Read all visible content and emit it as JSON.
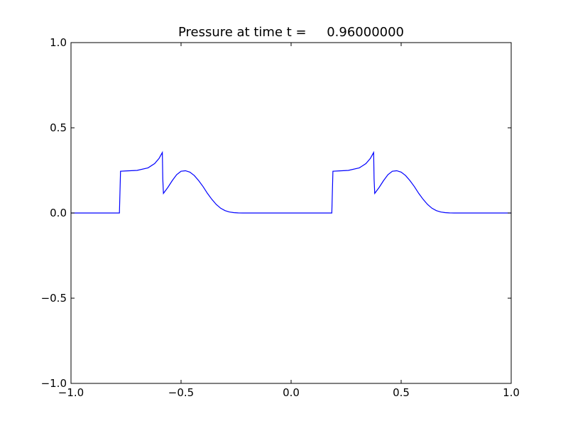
{
  "chart_data": {
    "type": "line",
    "title": "Pressure at time t =     0.96000000",
    "xlabel": "",
    "ylabel": "",
    "xlim": [
      -1.0,
      1.0
    ],
    "ylim": [
      -1.0,
      1.0
    ],
    "grid": false,
    "x_ticks": [
      "−1.0",
      "−0.5",
      "0.0",
      "0.5",
      "1.0"
    ],
    "y_ticks": [
      "−1.0",
      "−0.5",
      "0.0",
      "0.5",
      "1.0"
    ],
    "line_color": "#0000ff",
    "series": [
      {
        "x": [
          -1.0,
          -0.78,
          -0.775,
          -0.75,
          -0.7,
          -0.65,
          -0.62,
          -0.6,
          -0.585,
          -0.583,
          -0.58,
          -0.56,
          -0.54,
          -0.52,
          -0.5,
          -0.48,
          -0.46,
          -0.44,
          -0.42,
          -0.4,
          -0.38,
          -0.36,
          -0.34,
          -0.32,
          -0.3,
          -0.28,
          -0.26,
          -0.24,
          -0.22,
          -0.2,
          0.185,
          0.19,
          0.215,
          0.26,
          0.31,
          0.34,
          0.36,
          0.375,
          0.377,
          0.38,
          0.4,
          0.42,
          0.44,
          0.46,
          0.48,
          0.5,
          0.52,
          0.54,
          0.56,
          0.58,
          0.6,
          0.62,
          0.64,
          0.66,
          0.68,
          0.7,
          0.72,
          0.74,
          0.76,
          1.0
        ],
        "y": [
          0.0,
          0.0,
          0.245,
          0.247,
          0.25,
          0.265,
          0.29,
          0.32,
          0.355,
          0.2,
          0.115,
          0.15,
          0.19,
          0.225,
          0.245,
          0.248,
          0.24,
          0.22,
          0.19,
          0.155,
          0.115,
          0.08,
          0.05,
          0.028,
          0.014,
          0.006,
          0.002,
          0.0005,
          0.0,
          0.0,
          0.0,
          0.245,
          0.247,
          0.25,
          0.265,
          0.29,
          0.32,
          0.355,
          0.2,
          0.115,
          0.15,
          0.19,
          0.225,
          0.245,
          0.248,
          0.24,
          0.22,
          0.19,
          0.155,
          0.115,
          0.08,
          0.05,
          0.028,
          0.014,
          0.006,
          0.002,
          0.0005,
          0.0,
          0.0,
          0.0
        ]
      }
    ]
  }
}
